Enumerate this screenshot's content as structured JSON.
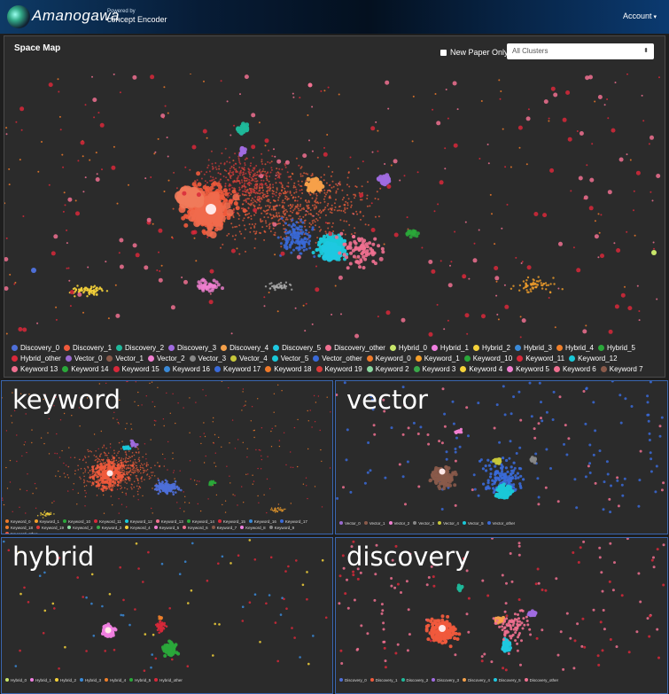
{
  "navbar": {
    "brand": "Amanogawa",
    "powered_by": "Powered by",
    "product": "concept Encoder",
    "account_label": "Account",
    "caret": "▾"
  },
  "space_map": {
    "title": "Space Map",
    "new_paper_label": "New Paper Only",
    "new_paper_checked": false,
    "cluster_select_value": "All Clusters",
    "select_arrow": "⬍",
    "legend": [
      {
        "label": "Discovery_0",
        "color": "#4e6fd8"
      },
      {
        "label": "Discovery_1",
        "color": "#f05a3c"
      },
      {
        "label": "Discovery_2",
        "color": "#1fb89a"
      },
      {
        "label": "Discovery_3",
        "color": "#a06be0"
      },
      {
        "label": "Discovery_4",
        "color": "#f5a04a"
      },
      {
        "label": "Discovery_5",
        "color": "#1fc8e0"
      },
      {
        "label": "Discovery_other",
        "color": "#f07090"
      },
      {
        "label": "Hybrid_0",
        "color": "#c8e66a"
      },
      {
        "label": "Hybrid_1",
        "color": "#f07fe0"
      },
      {
        "label": "Hybrid_2",
        "color": "#f5d23a"
      },
      {
        "label": "Hybrid_3",
        "color": "#3a8ad8"
      },
      {
        "label": "Hybrid_4",
        "color": "#f07f2a"
      },
      {
        "label": "Hybrid_5",
        "color": "#2aa83a"
      },
      {
        "label": "Hybrid_other",
        "color": "#d8283a"
      },
      {
        "label": "Vector_0",
        "color": "#9a6ad0"
      },
      {
        "label": "Vector_1",
        "color": "#8a5a4a"
      },
      {
        "label": "Vector_2",
        "color": "#f07fd0"
      },
      {
        "label": "Vector_3",
        "color": "#888888"
      },
      {
        "label": "Vector_4",
        "color": "#c8c83a"
      },
      {
        "label": "Vector_5",
        "color": "#1ac8d8"
      },
      {
        "label": "Vector_other",
        "color": "#3a6ad8"
      },
      {
        "label": "Keyword_0",
        "color": "#f07a2a"
      },
      {
        "label": "Keyword_1",
        "color": "#f5a02a"
      },
      {
        "label": "Keyword_10",
        "color": "#2aa83a"
      },
      {
        "label": "Keyword_11",
        "color": "#d8283a"
      },
      {
        "label": "Keyword_12",
        "color": "#1ac8d8"
      },
      {
        "label": "Keyword 13",
        "color": "#f07090"
      },
      {
        "label": "Keyword 14",
        "color": "#2aa83a"
      },
      {
        "label": "Keyword 15",
        "color": "#d8283a"
      },
      {
        "label": "Keyword 16",
        "color": "#3a8ad8"
      },
      {
        "label": "Keyword 17",
        "color": "#3a6ad8"
      },
      {
        "label": "Keyword 18",
        "color": "#f07a2a"
      },
      {
        "label": "Keyword 19",
        "color": "#d83a3a"
      },
      {
        "label": "Keyword 2",
        "color": "#8ad8a0"
      },
      {
        "label": "Keyword 3",
        "color": "#3aa84a"
      },
      {
        "label": "Keyword 4",
        "color": "#f5d23a"
      },
      {
        "label": "Keyword 5",
        "color": "#f07fd0"
      },
      {
        "label": "Keyword 6",
        "color": "#f07090"
      },
      {
        "label": "Keyword 7",
        "color": "#8a5a4a"
      }
    ]
  },
  "panels": {
    "keyword": {
      "title": "keyword",
      "legend": [
        {
          "label": "Keyword_0",
          "color": "#f07a2a"
        },
        {
          "label": "Keyword_1",
          "color": "#f5a02a"
        },
        {
          "label": "Keyword_10",
          "color": "#2aa83a"
        },
        {
          "label": "Keyword_11",
          "color": "#d8283a"
        },
        {
          "label": "Keyword_12",
          "color": "#1ac8d8"
        },
        {
          "label": "Keyword_13",
          "color": "#f07090"
        },
        {
          "label": "Keyword_14",
          "color": "#2aa83a"
        },
        {
          "label": "Keyword_15",
          "color": "#d8283a"
        },
        {
          "label": "Keyword_16",
          "color": "#3a8ad8"
        },
        {
          "label": "Keyword_17",
          "color": "#3a6ad8"
        },
        {
          "label": "Keyword_18",
          "color": "#f07a2a"
        },
        {
          "label": "Keyword_19",
          "color": "#d83a3a"
        },
        {
          "label": "Keyword_2",
          "color": "#8ad8a0"
        },
        {
          "label": "Keyword_3",
          "color": "#3aa84a"
        },
        {
          "label": "Keyword_4",
          "color": "#f5d23a"
        },
        {
          "label": "Keyword_5",
          "color": "#f07fd0"
        },
        {
          "label": "Keyword_6",
          "color": "#f07090"
        },
        {
          "label": "Keyword_7",
          "color": "#8a5a4a"
        },
        {
          "label": "Keyword_8",
          "color": "#f07fe0"
        },
        {
          "label": "Keyword_9",
          "color": "#888888"
        },
        {
          "label": "Keyword_other",
          "color": "#f05a3c"
        }
      ]
    },
    "vector": {
      "title": "vector",
      "legend": [
        {
          "label": "Vector_0",
          "color": "#9a6ad0"
        },
        {
          "label": "Vector_1",
          "color": "#8a5a4a"
        },
        {
          "label": "Vector_2",
          "color": "#f07fd0"
        },
        {
          "label": "Vector_3",
          "color": "#888888"
        },
        {
          "label": "Vector_4",
          "color": "#c8c83a"
        },
        {
          "label": "Vector_5",
          "color": "#1ac8d8"
        },
        {
          "label": "Vector_other",
          "color": "#3a6ad8"
        }
      ]
    },
    "hybrid": {
      "title": "hybrid",
      "legend": [
        {
          "label": "Hybrid_0",
          "color": "#c8e66a"
        },
        {
          "label": "Hybrid_1",
          "color": "#f07fe0"
        },
        {
          "label": "Hybrid_2",
          "color": "#f5d23a"
        },
        {
          "label": "Hybrid_3",
          "color": "#3a8ad8"
        },
        {
          "label": "Hybrid_4",
          "color": "#f07f2a"
        },
        {
          "label": "Hybrid_5",
          "color": "#2aa83a"
        },
        {
          "label": "Hybrid_other",
          "color": "#d8283a"
        }
      ]
    },
    "discovery": {
      "title": "discovery",
      "legend": [
        {
          "label": "Discovery_0",
          "color": "#4e6fd8"
        },
        {
          "label": "Discovery_1",
          "color": "#f05a3c"
        },
        {
          "label": "Discovery_2",
          "color": "#1fb89a"
        },
        {
          "label": "Discovery_3",
          "color": "#a06be0"
        },
        {
          "label": "Discovery_4",
          "color": "#f5a04a"
        },
        {
          "label": "Discovery_5",
          "color": "#1fc8e0"
        },
        {
          "label": "Discovery_other",
          "color": "#f07090"
        }
      ]
    }
  },
  "colors": {
    "background": "#1e1e1e",
    "panel": "#2b2b2b",
    "panel_border_blue": "#3a66b0"
  }
}
